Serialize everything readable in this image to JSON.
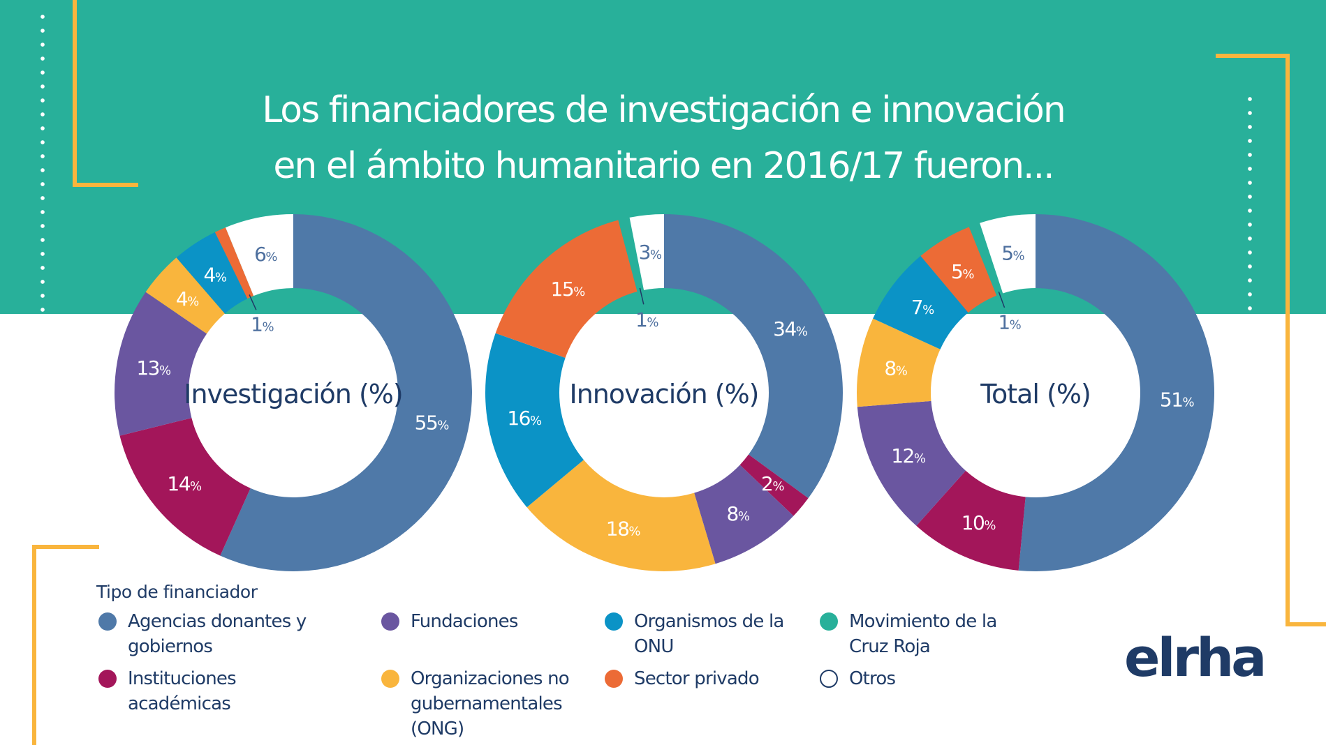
{
  "title": {
    "line1": "Los financiadores de investigación e innovación",
    "line2": "en el ámbito humanitario en 2016/17 fueron..."
  },
  "colors": {
    "background_band": "#28b09a",
    "accent_yellow": "#f9b53d",
    "navy": "#1f3b66"
  },
  "chart_data": [
    {
      "type": "pie",
      "variant": "donut",
      "title": "Investigación (%)",
      "categories": [
        "Agencias donantes y gobiernos",
        "Instituciones académicas",
        "Fundaciones",
        "Organizaciones no gubernamentales (ONG)",
        "Organismos de la ONU",
        "Sector privado",
        "Movimiento de la Cruz Roja",
        "Otros"
      ],
      "values": [
        55,
        14,
        13,
        4,
        4,
        1,
        0,
        6
      ],
      "labels": [
        "55",
        "14",
        "13",
        "4",
        "4",
        "1",
        "",
        "6"
      ],
      "unit": "%"
    },
    {
      "type": "pie",
      "variant": "donut",
      "title": "Innovación (%)",
      "categories": [
        "Agencias donantes y gobiernos",
        "Instituciones académicas",
        "Fundaciones",
        "Organizaciones no gubernamentales (ONG)",
        "Organismos de la ONU",
        "Sector privado",
        "Movimiento de la Cruz Roja",
        "Otros"
      ],
      "values": [
        34,
        2,
        8,
        18,
        16,
        15,
        1,
        3
      ],
      "labels": [
        "34",
        "2",
        "8",
        "18",
        "16",
        "15",
        "1",
        "3"
      ],
      "unit": "%"
    },
    {
      "type": "pie",
      "variant": "donut",
      "title": "Total (%)",
      "categories": [
        "Agencias donantes y gobiernos",
        "Instituciones académicas",
        "Fundaciones",
        "Organizaciones no gubernamentales (ONG)",
        "Organismos de la ONU",
        "Sector privado",
        "Movimiento de la Cruz Roja",
        "Otros"
      ],
      "values": [
        51,
        10,
        12,
        8,
        7,
        5,
        1,
        5
      ],
      "labels": [
        "51",
        "10",
        "12",
        "8",
        "7",
        "5",
        "1",
        "5"
      ],
      "unit": "%"
    }
  ],
  "series_colors": [
    "#4f79a8",
    "#a3165a",
    "#6a56a0",
    "#f9b53d",
    "#0b93c6",
    "#ec6b36",
    "#28b09a",
    "#ffffff"
  ],
  "legend": {
    "title": "Tipo de financiador",
    "items": [
      {
        "label": "Agencias donantes y gobiernos",
        "color": "#4f79a8"
      },
      {
        "label": "Fundaciones",
        "color": "#6a56a0"
      },
      {
        "label": "Organismos de la ONU",
        "color": "#0b93c6"
      },
      {
        "label": "Movimiento de la Cruz Roja",
        "color": "#28b09a"
      },
      {
        "label": "Instituciones académicas",
        "color": "#a3165a"
      },
      {
        "label": "Organizaciones no gubernamentales (ONG)",
        "color": "#f9b53d"
      },
      {
        "label": "Sector privado",
        "color": "#ec6b36"
      },
      {
        "label": "Otros",
        "color": "#ffffff"
      }
    ]
  },
  "logo": {
    "text": "elrha"
  }
}
